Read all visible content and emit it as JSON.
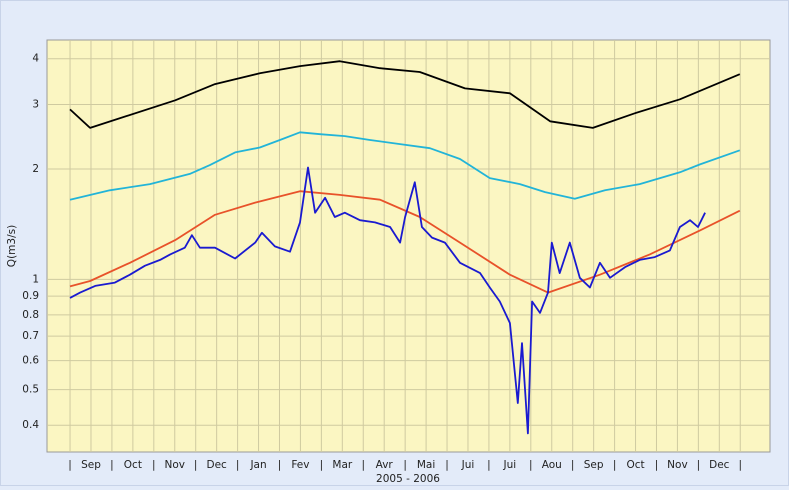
{
  "chart_data": {
    "type": "line",
    "y_label": "Q(m3/s)",
    "x_label": "2005 - 2006",
    "log_y": true,
    "grid": true,
    "xlim": [
      -0.55,
      16.71
    ],
    "ylim": [
      0.338,
      4.5
    ],
    "yticks": [
      0.4,
      0.5,
      0.6,
      0.7,
      0.8,
      0.9,
      1,
      2,
      3,
      4
    ],
    "xticks": [
      {
        "value": 0,
        "label": "|"
      },
      {
        "value": 0.5,
        "label": "Sep"
      },
      {
        "value": 1,
        "label": "|"
      },
      {
        "value": 1.5,
        "label": "Oct"
      },
      {
        "value": 2,
        "label": "|"
      },
      {
        "value": 2.5,
        "label": "Nov"
      },
      {
        "value": 3,
        "label": "|"
      },
      {
        "value": 3.5,
        "label": "Dec"
      },
      {
        "value": 4,
        "label": "|"
      },
      {
        "value": 4.5,
        "label": "Jan"
      },
      {
        "value": 5,
        "label": "|"
      },
      {
        "value": 5.5,
        "label": "Fev"
      },
      {
        "value": 6,
        "label": "|"
      },
      {
        "value": 6.5,
        "label": "Mar"
      },
      {
        "value": 7,
        "label": "|"
      },
      {
        "value": 7.5,
        "label": "Avr"
      },
      {
        "value": 8,
        "label": "|"
      },
      {
        "value": 8.5,
        "label": "Mai"
      },
      {
        "value": 9,
        "label": "|"
      },
      {
        "value": 9.5,
        "label": "Jui"
      },
      {
        "value": 10,
        "label": "|"
      },
      {
        "value": 10.5,
        "label": "Jui"
      },
      {
        "value": 11,
        "label": "|"
      },
      {
        "value": 11.5,
        "label": "Aou"
      },
      {
        "value": 12,
        "label": "|"
      },
      {
        "value": 12.5,
        "label": "Sep"
      },
      {
        "value": 13,
        "label": "|"
      },
      {
        "value": 13.5,
        "label": "Oct"
      },
      {
        "value": 14,
        "label": "|"
      },
      {
        "value": 14.5,
        "label": "Nov"
      },
      {
        "value": 15,
        "label": "|"
      },
      {
        "value": 15.5,
        "label": "Dec"
      },
      {
        "value": 16,
        "label": "|"
      }
    ],
    "series": [
      {
        "color": "#000000",
        "x": [
          0,
          0.48,
          2.51,
          3.46,
          4.53,
          5.49,
          6.44,
          7.4,
          8.35,
          9.43,
          10.5,
          11.46,
          12.48,
          13.48,
          14.56,
          15.99
        ],
        "values": [
          2.91,
          2.59,
          3.08,
          3.41,
          3.65,
          3.82,
          3.94,
          3.77,
          3.68,
          3.32,
          3.22,
          2.7,
          2.59,
          2.84,
          3.1,
          3.63
        ]
      },
      {
        "color": "#22b4d8",
        "x": [
          0,
          0.95,
          1.91,
          2.86,
          3.34,
          3.94,
          4.53,
          5.01,
          5.49,
          5.97,
          6.56,
          7.16,
          7.88,
          8.59,
          9.31,
          10.02,
          10.74,
          11.34,
          12.05,
          12.77,
          13.6,
          14.56,
          15.04,
          15.99
        ],
        "values": [
          1.65,
          1.75,
          1.82,
          1.94,
          2.05,
          2.22,
          2.29,
          2.4,
          2.52,
          2.49,
          2.46,
          2.4,
          2.34,
          2.28,
          2.13,
          1.89,
          1.82,
          1.73,
          1.66,
          1.75,
          1.82,
          1.96,
          2.06,
          2.25
        ]
      },
      {
        "color": "#e8522a",
        "x": [
          0,
          0.48,
          1.43,
          2.51,
          3.46,
          4.42,
          5.49,
          6.44,
          7.4,
          8.35,
          9.31,
          10.5,
          11.41,
          12.65,
          13.84,
          15.04,
          15.99
        ],
        "values": [
          0.957,
          0.99,
          1.11,
          1.28,
          1.5,
          1.62,
          1.74,
          1.7,
          1.65,
          1.48,
          1.26,
          1.03,
          0.92,
          1.03,
          1.17,
          1.36,
          1.54
        ]
      },
      {
        "color": "#1a1ad0",
        "x": [
          0,
          0.24,
          0.6,
          1.07,
          1.43,
          1.79,
          2.15,
          2.39,
          2.74,
          2.91,
          3.1,
          3.46,
          3.94,
          4.42,
          4.58,
          4.89,
          5.25,
          5.49,
          5.68,
          5.85,
          6.09,
          6.32,
          6.56,
          6.92,
          7.28,
          7.64,
          7.88,
          8.0,
          8.23,
          8.4,
          8.64,
          8.95,
          9.31,
          9.79,
          10.02,
          10.26,
          10.5,
          10.69,
          10.79,
          10.93,
          11.03,
          11.22,
          11.41,
          11.5,
          11.69,
          11.93,
          12.17,
          12.41,
          12.65,
          12.89,
          13.25,
          13.6,
          13.96,
          14.32,
          14.56,
          14.8,
          14.99,
          15.16
        ],
        "values": [
          0.89,
          0.92,
          0.96,
          0.98,
          1.03,
          1.09,
          1.13,
          1.17,
          1.22,
          1.32,
          1.22,
          1.22,
          1.14,
          1.26,
          1.34,
          1.23,
          1.19,
          1.43,
          2.02,
          1.52,
          1.67,
          1.48,
          1.52,
          1.45,
          1.43,
          1.39,
          1.26,
          1.48,
          1.84,
          1.39,
          1.3,
          1.26,
          1.11,
          1.04,
          0.95,
          0.87,
          0.76,
          0.46,
          0.67,
          0.38,
          0.87,
          0.81,
          0.92,
          1.26,
          1.04,
          1.26,
          1.01,
          0.95,
          1.11,
          1.01,
          1.08,
          1.13,
          1.15,
          1.2,
          1.39,
          1.45,
          1.39,
          1.52
        ]
      }
    ]
  }
}
